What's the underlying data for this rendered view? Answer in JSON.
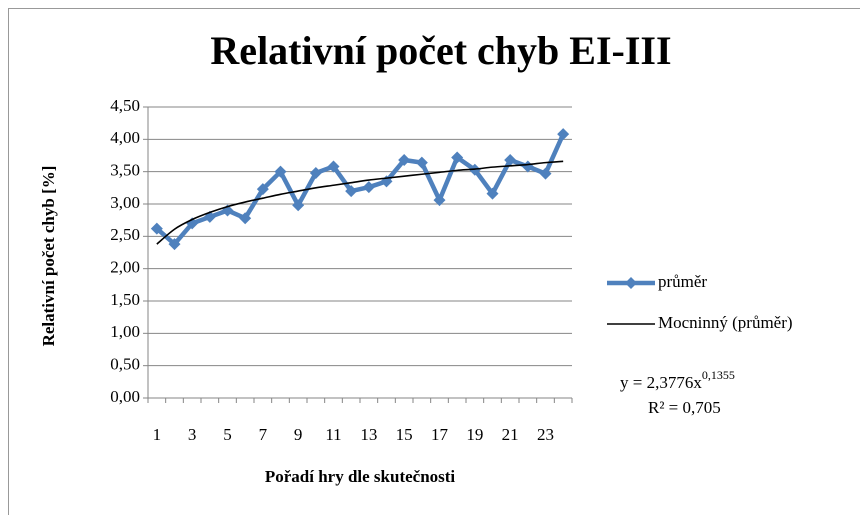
{
  "chart_data": {
    "type": "line",
    "title": "Relativní počet chyb EI-III",
    "x_label": "Pořadí hry dle skutečnosti",
    "y_label": "Relativní počet chyb [%]",
    "categories": [
      1,
      null,
      3,
      null,
      5,
      null,
      7,
      null,
      9,
      null,
      11,
      null,
      13,
      null,
      15,
      null,
      17,
      null,
      19,
      null,
      21,
      null,
      23,
      null
    ],
    "series": [
      {
        "name": "průměr",
        "color": "#4f81bd",
        "marker": "diamond",
        "values": [
          2.62,
          2.38,
          2.7,
          2.8,
          2.9,
          2.78,
          3.23,
          3.5,
          2.98,
          3.48,
          3.58,
          3.2,
          3.26,
          3.35,
          3.68,
          3.64,
          3.06,
          3.72,
          3.53,
          3.16,
          3.68,
          3.58,
          3.47,
          4.08
        ]
      },
      {
        "name": "Mocninný (průměr)",
        "color": "#000000",
        "marker": "none",
        "smooth": true,
        "values": [
          2.38,
          2.61,
          2.76,
          2.87,
          2.96,
          3.03,
          3.09,
          3.15,
          3.2,
          3.25,
          3.29,
          3.33,
          3.37,
          3.4,
          3.43,
          3.46,
          3.49,
          3.52,
          3.54,
          3.57,
          3.59,
          3.61,
          3.64,
          3.66
        ]
      }
    ],
    "equation": "y = 2,3776x",
    "equation_exponent": "0,1355",
    "r_squared": "R² = 0,705",
    "ylim": [
      0,
      4.5
    ],
    "yticks": [
      {
        "value": 0,
        "label": "0,00"
      },
      {
        "value": 0.5,
        "label": "0,50"
      },
      {
        "value": 1,
        "label": "1,00"
      },
      {
        "value": 1.5,
        "label": "1,50"
      },
      {
        "value": 2,
        "label": "2,00"
      },
      {
        "value": 2.5,
        "label": "2,50"
      },
      {
        "value": 3,
        "label": "3,00"
      },
      {
        "value": 3.5,
        "label": "3,50"
      },
      {
        "value": 4,
        "label": "4,00"
      },
      {
        "value": 4.5,
        "label": "4,50"
      }
    ],
    "grid": true,
    "legend": "right"
  }
}
